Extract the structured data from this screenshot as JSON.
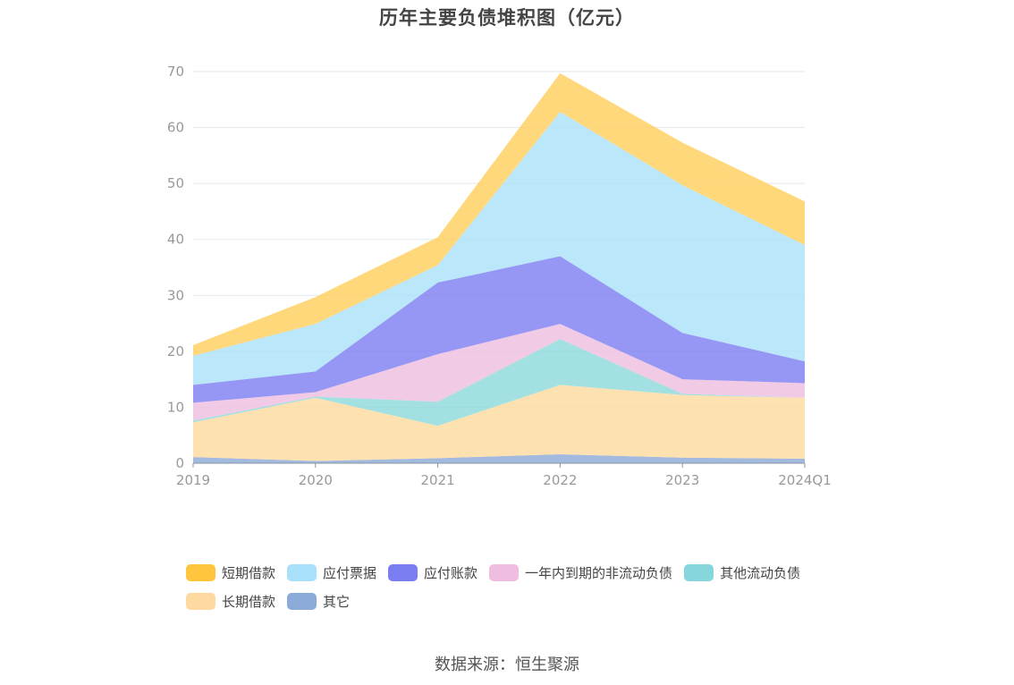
{
  "chart_data": {
    "type": "area",
    "stacked": true,
    "title": "历年主要负债堆积图（亿元）",
    "categories": [
      "2019",
      "2020",
      "2021",
      "2022",
      "2023",
      "2024Q1"
    ],
    "ylim": [
      0,
      70
    ],
    "yticks": [
      0,
      10,
      20,
      30,
      40,
      50,
      60,
      70
    ],
    "grid": true,
    "legend_position": "bottom",
    "series": [
      {
        "name": "其它",
        "color": "#8fabd8",
        "values": [
          1.1,
          0.4,
          0.9,
          1.6,
          1.0,
          0.8
        ]
      },
      {
        "name": "长期借款",
        "color": "#fedba0",
        "values": [
          6.2,
          11.3,
          5.8,
          12.4,
          11.2,
          10.9
        ]
      },
      {
        "name": "其他流动负债",
        "color": "#8dd9dc",
        "values": [
          0.3,
          0.2,
          4.3,
          8.2,
          0.2,
          0.0
        ]
      },
      {
        "name": "一年内到期的非流动负债",
        "color": "#eec0e0",
        "values": [
          3.2,
          0.8,
          8.5,
          2.7,
          2.6,
          2.6
        ]
      },
      {
        "name": "应付账款",
        "color": "#7f80f2",
        "values": [
          3.2,
          3.7,
          12.8,
          12.1,
          8.3,
          3.9
        ]
      },
      {
        "name": "应付票据",
        "color": "#ace2f9",
        "values": [
          5.2,
          8.5,
          3.1,
          25.8,
          26.4,
          20.8
        ]
      },
      {
        "name": "短期借款",
        "color": "#ffcf5f",
        "values": [
          1.9,
          4.8,
          5.0,
          6.9,
          7.6,
          7.8
        ]
      }
    ]
  },
  "legend": [
    {
      "label": "短期借款",
      "color": "#ffc53d"
    },
    {
      "label": "应付票据",
      "color": "#a8dffa"
    },
    {
      "label": "应付账款",
      "color": "#7b7ef0"
    },
    {
      "label": "一年内到期的非流动负债",
      "color": "#efbddf"
    },
    {
      "label": "其他流动负债",
      "color": "#86d7db"
    },
    {
      "label": "长期借款",
      "color": "#fed9a0"
    },
    {
      "label": "其它",
      "color": "#8dabd9"
    }
  ],
  "source": "数据来源：恒生聚源"
}
